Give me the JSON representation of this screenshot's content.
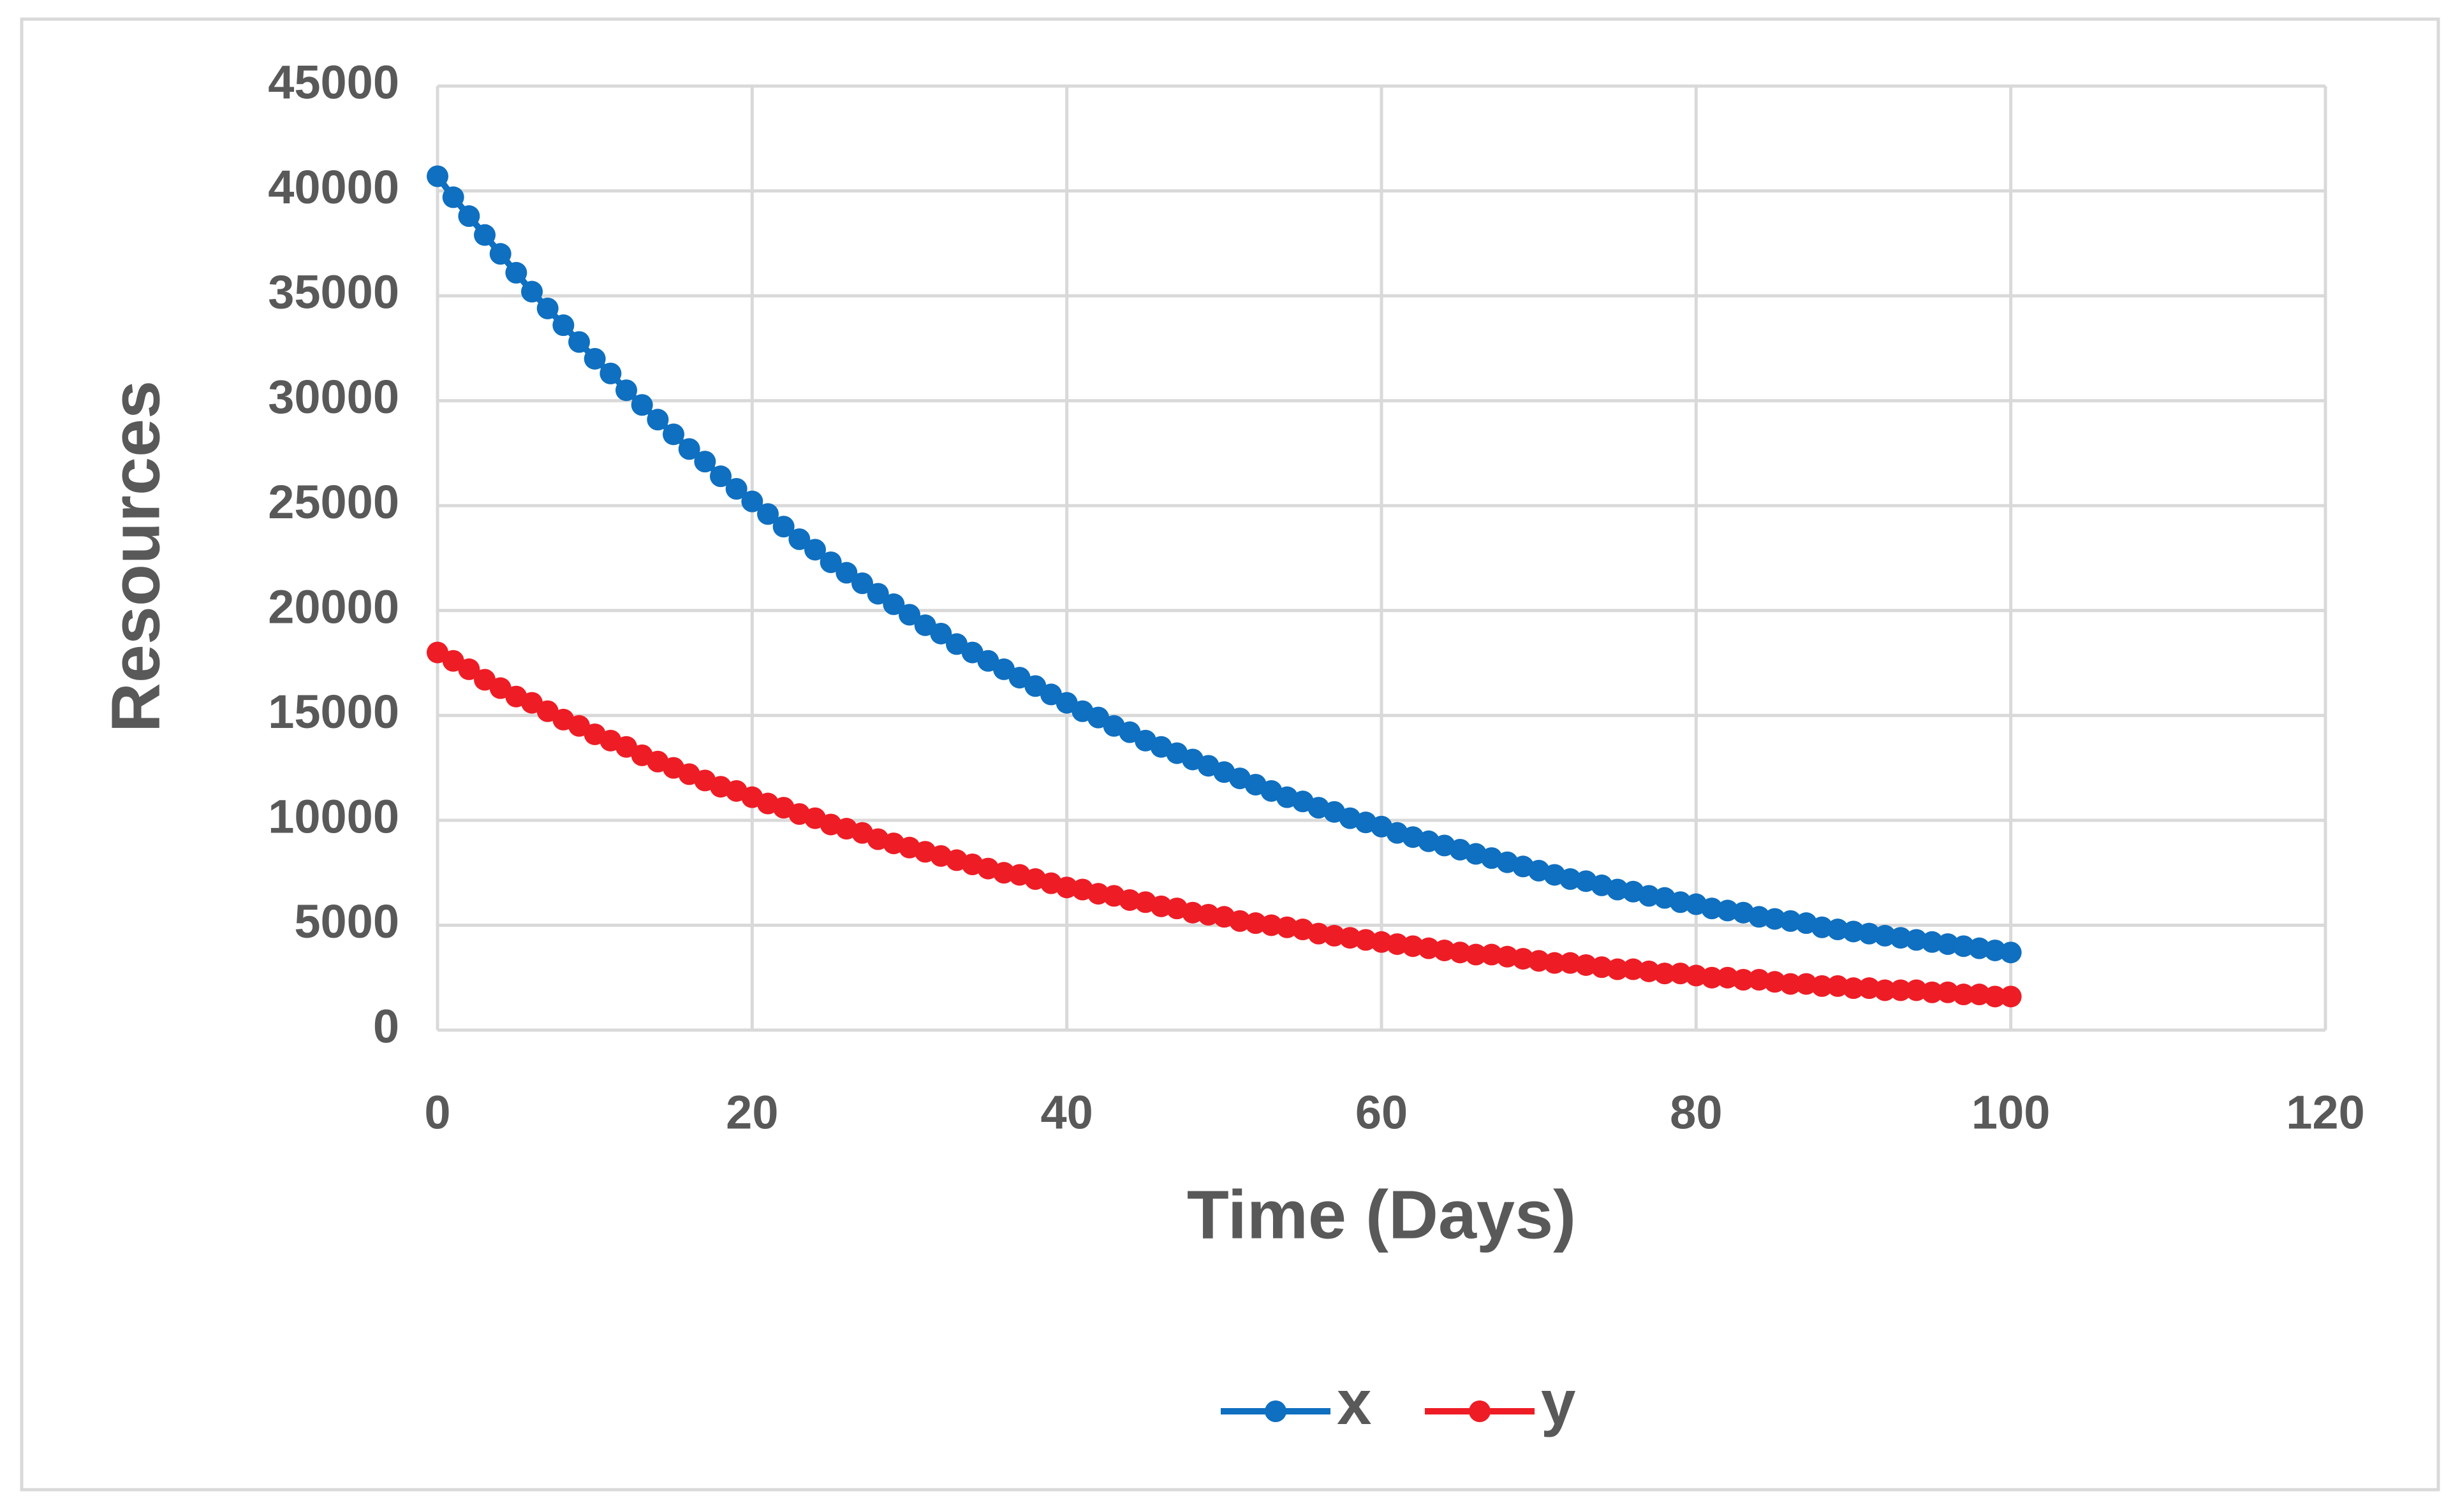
{
  "chart_data": {
    "type": "line",
    "xlabel": "Time (Days)",
    "ylabel": "Resources",
    "x": [
      0,
      1,
      2,
      3,
      4,
      5,
      6,
      7,
      8,
      9,
      10,
      11,
      12,
      13,
      14,
      15,
      16,
      17,
      18,
      19,
      20,
      21,
      22,
      23,
      24,
      25,
      26,
      27,
      28,
      29,
      30,
      31,
      32,
      33,
      34,
      35,
      36,
      37,
      38,
      39,
      40,
      41,
      42,
      43,
      44,
      45,
      46,
      47,
      48,
      49,
      50,
      51,
      52,
      53,
      54,
      55,
      56,
      57,
      58,
      59,
      60,
      61,
      62,
      63,
      64,
      65,
      66,
      67,
      68,
      69,
      70,
      71,
      72,
      73,
      74,
      75,
      76,
      77,
      78,
      79,
      80,
      81,
      82,
      83,
      84,
      85,
      86,
      87,
      88,
      89,
      90,
      91,
      92,
      93,
      94,
      95,
      96,
      97,
      98,
      99,
      100
    ],
    "series": [
      {
        "name": "x",
        "color": "#0f6fc0",
        "values": [
          40700,
          39700,
          38800,
          37900,
          37000,
          36100,
          35200,
          34400,
          33600,
          32800,
          32000,
          31300,
          30500,
          29800,
          29100,
          28400,
          27700,
          27100,
          26400,
          25800,
          25200,
          24600,
          24000,
          23400,
          22900,
          22300,
          21800,
          21300,
          20800,
          20300,
          19800,
          19300,
          18900,
          18400,
          18000,
          17600,
          17200,
          16800,
          16400,
          16000,
          15600,
          15200,
          14900,
          14500,
          14200,
          13800,
          13500,
          13200,
          12900,
          12600,
          12300,
          12000,
          11700,
          11400,
          11100,
          10900,
          10600,
          10400,
          10100,
          9900,
          9700,
          9400,
          9200,
          9000,
          8800,
          8600,
          8400,
          8200,
          8000,
          7800,
          7600,
          7400,
          7200,
          7100,
          6900,
          6700,
          6600,
          6400,
          6300,
          6100,
          6000,
          5800,
          5700,
          5600,
          5400,
          5300,
          5200,
          5100,
          4900,
          4800,
          4700,
          4600,
          4500,
          4400,
          4300,
          4200,
          4100,
          4000,
          3900,
          3800,
          3700
        ]
      },
      {
        "name": "y",
        "color": "#ee1c25",
        "values": [
          18000,
          17600,
          17200,
          16700,
          16300,
          15900,
          15600,
          15200,
          14800,
          14500,
          14100,
          13800,
          13500,
          13100,
          12800,
          12500,
          12200,
          11900,
          11600,
          11400,
          11100,
          10800,
          10600,
          10300,
          10100,
          9800,
          9600,
          9400,
          9100,
          8900,
          8700,
          8500,
          8300,
          8100,
          7900,
          7700,
          7500,
          7400,
          7200,
          7000,
          6800,
          6700,
          6500,
          6400,
          6200,
          6100,
          5900,
          5800,
          5600,
          5500,
          5400,
          5200,
          5100,
          5000,
          4900,
          4800,
          4600,
          4500,
          4400,
          4300,
          4200,
          4100,
          4000,
          3900,
          3800,
          3700,
          3600,
          3600,
          3500,
          3400,
          3300,
          3200,
          3200,
          3100,
          3000,
          2900,
          2900,
          2800,
          2700,
          2700,
          2600,
          2500,
          2500,
          2400,
          2400,
          2300,
          2200,
          2200,
          2100,
          2100,
          2000,
          2000,
          1900,
          1900,
          1900,
          1800,
          1800,
          1700,
          1700,
          1600,
          1600
        ]
      }
    ],
    "xlim": [
      0,
      120
    ],
    "xticks": [
      0,
      20,
      40,
      60,
      80,
      100,
      120
    ],
    "ylim": [
      0,
      45000
    ],
    "yticks": [
      0,
      5000,
      10000,
      15000,
      20000,
      25000,
      30000,
      35000,
      40000,
      45000
    ],
    "grid": true,
    "legend": "bottom"
  }
}
